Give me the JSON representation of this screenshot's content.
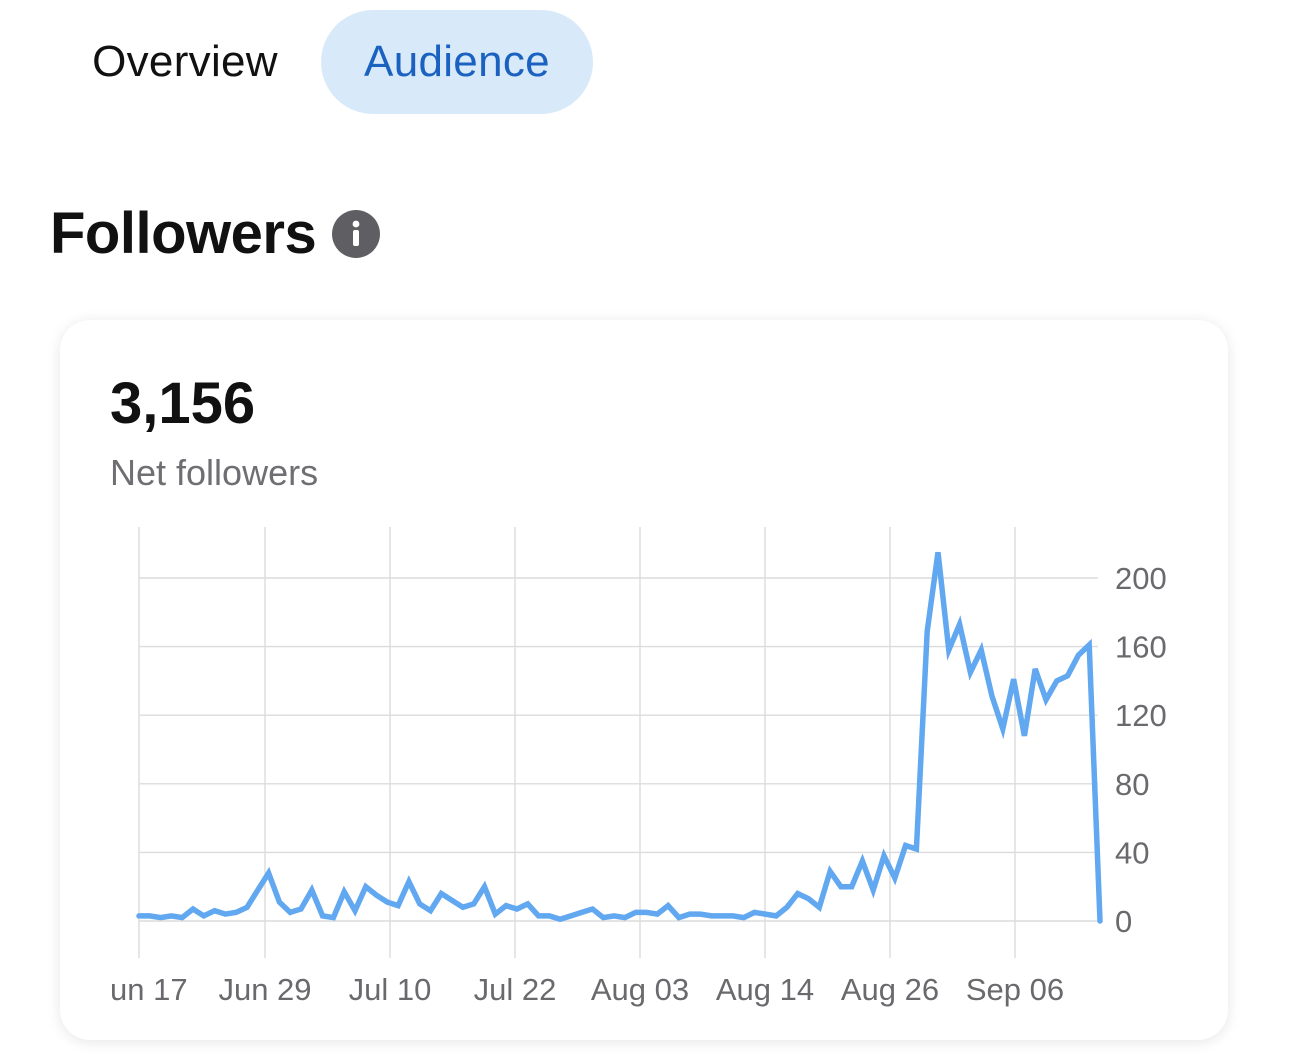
{
  "tabs": [
    {
      "label": "Overview",
      "active": false
    },
    {
      "label": "Audience",
      "active": true
    }
  ],
  "section": {
    "title": "Followers",
    "info_icon": "info-icon"
  },
  "metric": {
    "value": "3,156",
    "label": "Net followers"
  },
  "colors": {
    "accent": "#1b62c0",
    "active_tab_bg": "#d8eafa",
    "line": "#62a8f0",
    "grid": "#dcdcdc"
  },
  "chart_data": {
    "type": "line",
    "xlabel": "",
    "ylabel": "",
    "ylim": [
      0,
      200
    ],
    "y_ticks": [
      "0",
      "40",
      "80",
      "120",
      "160",
      "200"
    ],
    "x_ticks": [
      "un 17",
      "Jun 29",
      "Jul 10",
      "Jul 22",
      "Aug 03",
      "Aug 14",
      "Aug 26",
      "Sep 06"
    ],
    "grid": true,
    "y_axis_side": "right",
    "series": [
      {
        "values": [
          3,
          3,
          2,
          3,
          2,
          7,
          3,
          6,
          4,
          5,
          8,
          18,
          28,
          11,
          5,
          7,
          18,
          3,
          2,
          17,
          6,
          20,
          15,
          11,
          9,
          23,
          10,
          6,
          16,
          12,
          8,
          10,
          20,
          4,
          9,
          7,
          10,
          3,
          3,
          1,
          3,
          5,
          7,
          2,
          3,
          2,
          5,
          5,
          4,
          9,
          2,
          4,
          4,
          3,
          3,
          3,
          2,
          5,
          4,
          3,
          8,
          16,
          13,
          8,
          29,
          20,
          20,
          35,
          18,
          38,
          25,
          44,
          42,
          169,
          215,
          158,
          173,
          145,
          158,
          131,
          112,
          141,
          108,
          147,
          129,
          140,
          143,
          155,
          161,
          0
        ]
      }
    ]
  }
}
